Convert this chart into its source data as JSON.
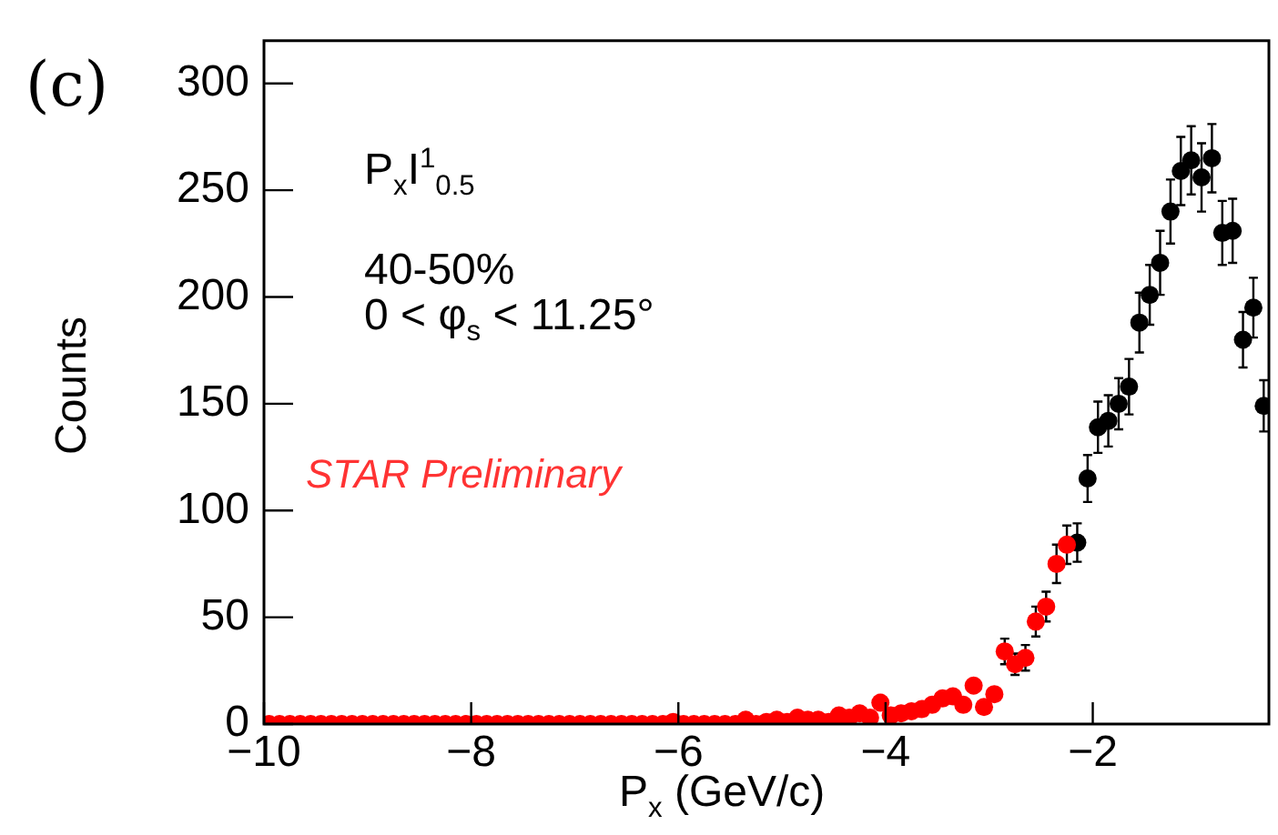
{
  "chart_data": {
    "type": "scatter",
    "xlabel": "P$_{x}$ (GeV/c)",
    "ylabel": "Counts",
    "annotations": [
      "(c)",
      "P$_{x}$I$^{1}$$_{0.5}$",
      "40-50%",
      "0 < φ$_{s}$ < 11.25°",
      "STAR Preliminary"
    ],
    "xlim": [
      -10,
      -0.3
    ],
    "xticks": [
      {
        "value": -10,
        "label": "−10"
      },
      {
        "value": -8,
        "label": "−8"
      },
      {
        "value": -6,
        "label": "−6"
      },
      {
        "value": -4,
        "label": "−4"
      },
      {
        "value": -2,
        "label": "−2"
      }
    ],
    "ylim": [
      0,
      320
    ],
    "yticks": [
      0,
      50,
      100,
      150,
      200,
      250,
      300
    ],
    "grid": false,
    "legend": false,
    "marker": "circle",
    "series": [
      {
        "color": "#ff0000",
        "x": [
          -9.95,
          -9.85,
          -9.75,
          -9.65,
          -9.55,
          -9.45,
          -9.35,
          -9.25,
          -9.15,
          -9.05,
          -8.95,
          -8.85,
          -8.75,
          -8.65,
          -8.55,
          -8.45,
          -8.35,
          -8.25,
          -8.15,
          -8.05,
          -7.95,
          -7.85,
          -7.75,
          -7.65,
          -7.55,
          -7.45,
          -7.35,
          -7.25,
          -7.15,
          -7.05,
          -6.95,
          -6.85,
          -6.75,
          -6.65,
          -6.55,
          -6.45,
          -6.35,
          -6.25,
          -6.15,
          -6.05,
          -5.95,
          -5.85,
          -5.75,
          -5.65,
          -5.55,
          -5.45,
          -5.35,
          -5.25,
          -5.15,
          -5.05,
          -4.95,
          -4.85,
          -4.75,
          -4.65,
          -4.55,
          -4.45,
          -4.35,
          -4.25,
          -4.15,
          -4.05,
          -3.95,
          -3.85,
          -3.75,
          -3.65,
          -3.55,
          -3.45,
          -3.35,
          -3.25,
          -3.15,
          -3.05,
          -2.95,
          -2.85,
          -2.75,
          -2.65,
          -2.55,
          -2.45,
          -2.35,
          -2.25
        ],
        "values": [
          0,
          0,
          0,
          0,
          0,
          0,
          0,
          0,
          0,
          0,
          0,
          0,
          0,
          0,
          0,
          0,
          0,
          0,
          0,
          0,
          0,
          0,
          0,
          0,
          0,
          0,
          0,
          0,
          0,
          0,
          0,
          0,
          0,
          0,
          0,
          0,
          0,
          0,
          0,
          1,
          0,
          0,
          0,
          0,
          0,
          0,
          2,
          0,
          1,
          2,
          1,
          3,
          2,
          2,
          1,
          4,
          3,
          5,
          3,
          10,
          4,
          5,
          6,
          7,
          9,
          12,
          13,
          9,
          18,
          8,
          14,
          34,
          28,
          31,
          48,
          55,
          75,
          84
        ],
        "errors": [
          null,
          null,
          null,
          null,
          null,
          null,
          null,
          null,
          null,
          null,
          null,
          null,
          null,
          null,
          null,
          null,
          null,
          null,
          null,
          null,
          null,
          null,
          null,
          null,
          null,
          null,
          null,
          null,
          null,
          null,
          null,
          null,
          null,
          null,
          null,
          null,
          null,
          null,
          null,
          null,
          null,
          null,
          null,
          null,
          null,
          null,
          null,
          null,
          null,
          null,
          null,
          null,
          null,
          null,
          null,
          null,
          null,
          null,
          null,
          null,
          null,
          null,
          null,
          null,
          null,
          null,
          null,
          null,
          null,
          null,
          null,
          6,
          5,
          6,
          7,
          7,
          9,
          9
        ]
      },
      {
        "color": "#000000",
        "x": [
          -2.15,
          -2.05,
          -1.95,
          -1.85,
          -1.75,
          -1.65,
          -1.55,
          -1.45,
          -1.35,
          -1.25,
          -1.15,
          -1.05,
          -0.95,
          -0.85,
          -0.75,
          -0.65,
          -0.55,
          -0.45,
          -0.35
        ],
        "values": [
          85,
          115,
          139,
          142,
          150,
          158,
          188,
          201,
          216,
          240,
          259,
          264,
          256,
          265,
          230,
          231,
          180,
          195,
          149
        ],
        "errors": [
          9,
          11,
          12,
          12,
          12,
          13,
          14,
          14,
          15,
          15,
          16,
          16,
          16,
          16,
          15,
          15,
          13,
          14,
          12
        ]
      }
    ]
  }
}
